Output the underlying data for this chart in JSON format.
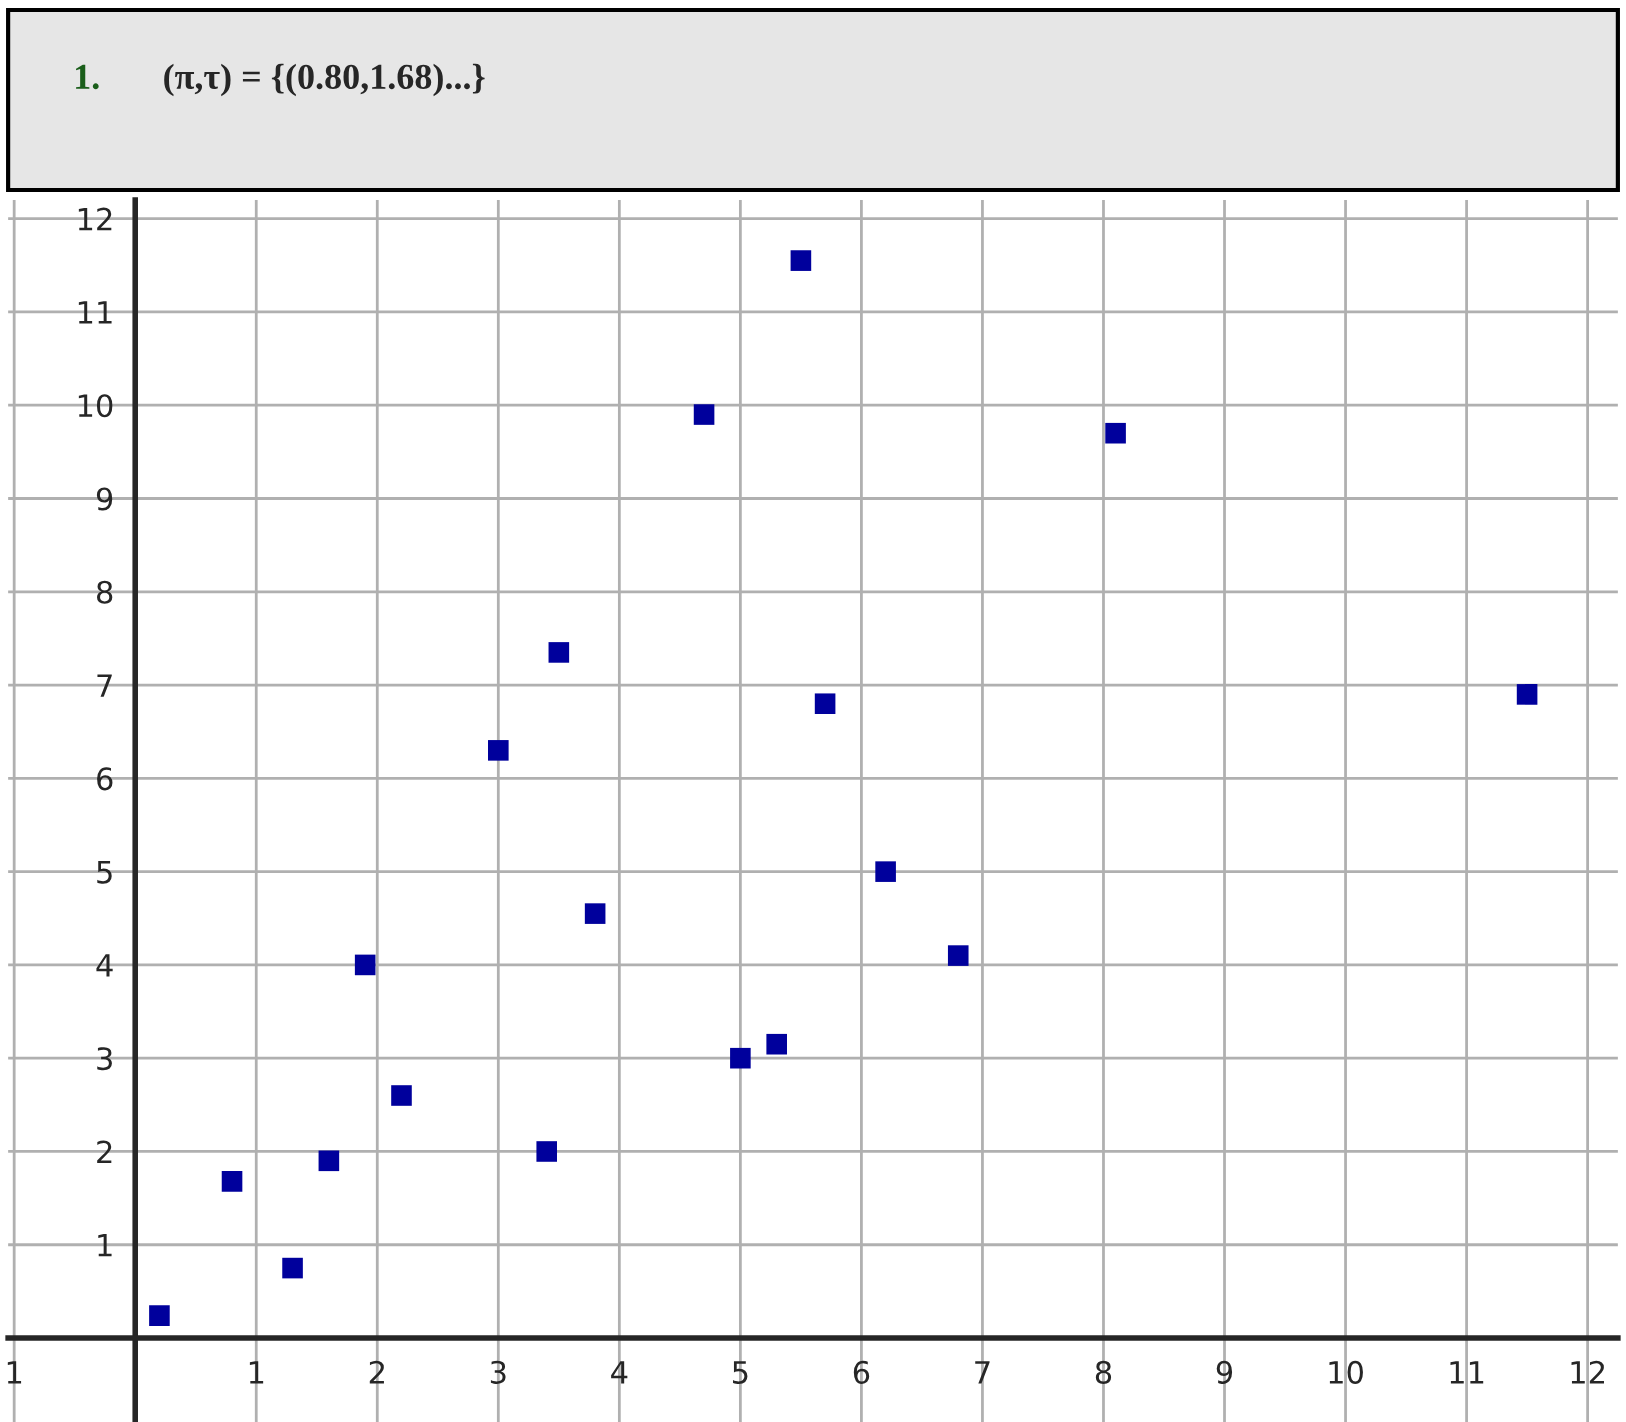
{
  "chart_data": {
    "type": "scatter",
    "title": "(π,τ) = {(0.80,1.68)...}",
    "annotations": [
      "1."
    ],
    "x": [
      0.8,
      0.2,
      1.3,
      1.6,
      1.9,
      2.2,
      3.0,
      3.4,
      3.5,
      3.8,
      4.7,
      5.0,
      5.3,
      5.5,
      5.7,
      6.2,
      6.8,
      8.1,
      11.5
    ],
    "series": [
      {
        "color": "#00009c",
        "values": [
          1.68,
          0.24,
          0.75,
          1.9,
          4.0,
          2.6,
          6.3,
          2.0,
          7.35,
          4.55,
          9.9,
          3.0,
          3.15,
          11.55,
          6.8,
          5.0,
          4.1,
          9.7,
          6.9
        ]
      }
    ],
    "xlim": [
      -1.05,
      12.25
    ],
    "ylim": [
      -0.9,
      12.2
    ],
    "xticks": [
      {
        "value": -1,
        "label": "1"
      },
      1,
      2,
      3,
      4,
      5,
      6,
      7,
      8,
      9,
      10,
      11,
      12
    ],
    "yticks": [
      1,
      2,
      3,
      4,
      5,
      6,
      7,
      8,
      9,
      10,
      11,
      12
    ],
    "grid": true,
    "marker": "square",
    "legend": false
  }
}
